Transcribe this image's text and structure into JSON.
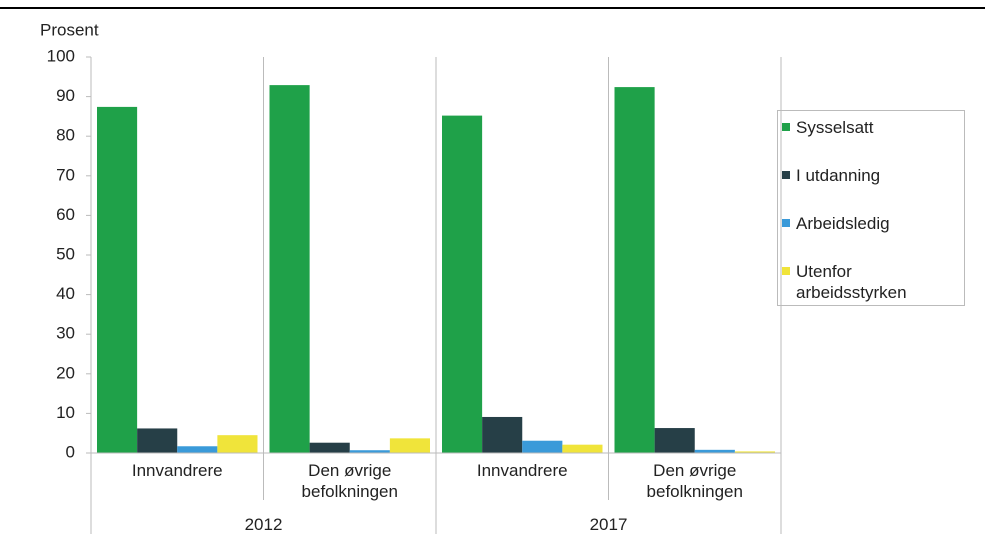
{
  "chart_data": {
    "type": "bar",
    "ylabel": "Prosent",
    "categories": [
      "Innvandrere",
      "Den øvrige befolkningen",
      "Innvandrere",
      "Den øvrige befolkningen"
    ],
    "groups": [
      "2012",
      "2017"
    ],
    "series": [
      {
        "name": "Sysselsatt",
        "color": "#1fa149",
        "values": [
          87.4,
          92.9,
          85.2,
          92.4
        ]
      },
      {
        "name": "I utdanning",
        "color": "#263f47",
        "values": [
          6.2,
          2.6,
          9.1,
          6.3
        ]
      },
      {
        "name": "Arbeidsledig",
        "color": "#3a9ad9",
        "values": [
          1.7,
          0.7,
          3.1,
          0.8
        ]
      },
      {
        "name": "Utenfor arbeidsstyrken",
        "color": "#f0e43a",
        "values": [
          4.5,
          3.7,
          2.1,
          0.4
        ]
      }
    ],
    "ylim": [
      0,
      100
    ],
    "yticks": [
      0,
      10,
      20,
      30,
      40,
      50,
      60,
      70,
      80,
      90,
      100
    ],
    "legend": "right"
  }
}
